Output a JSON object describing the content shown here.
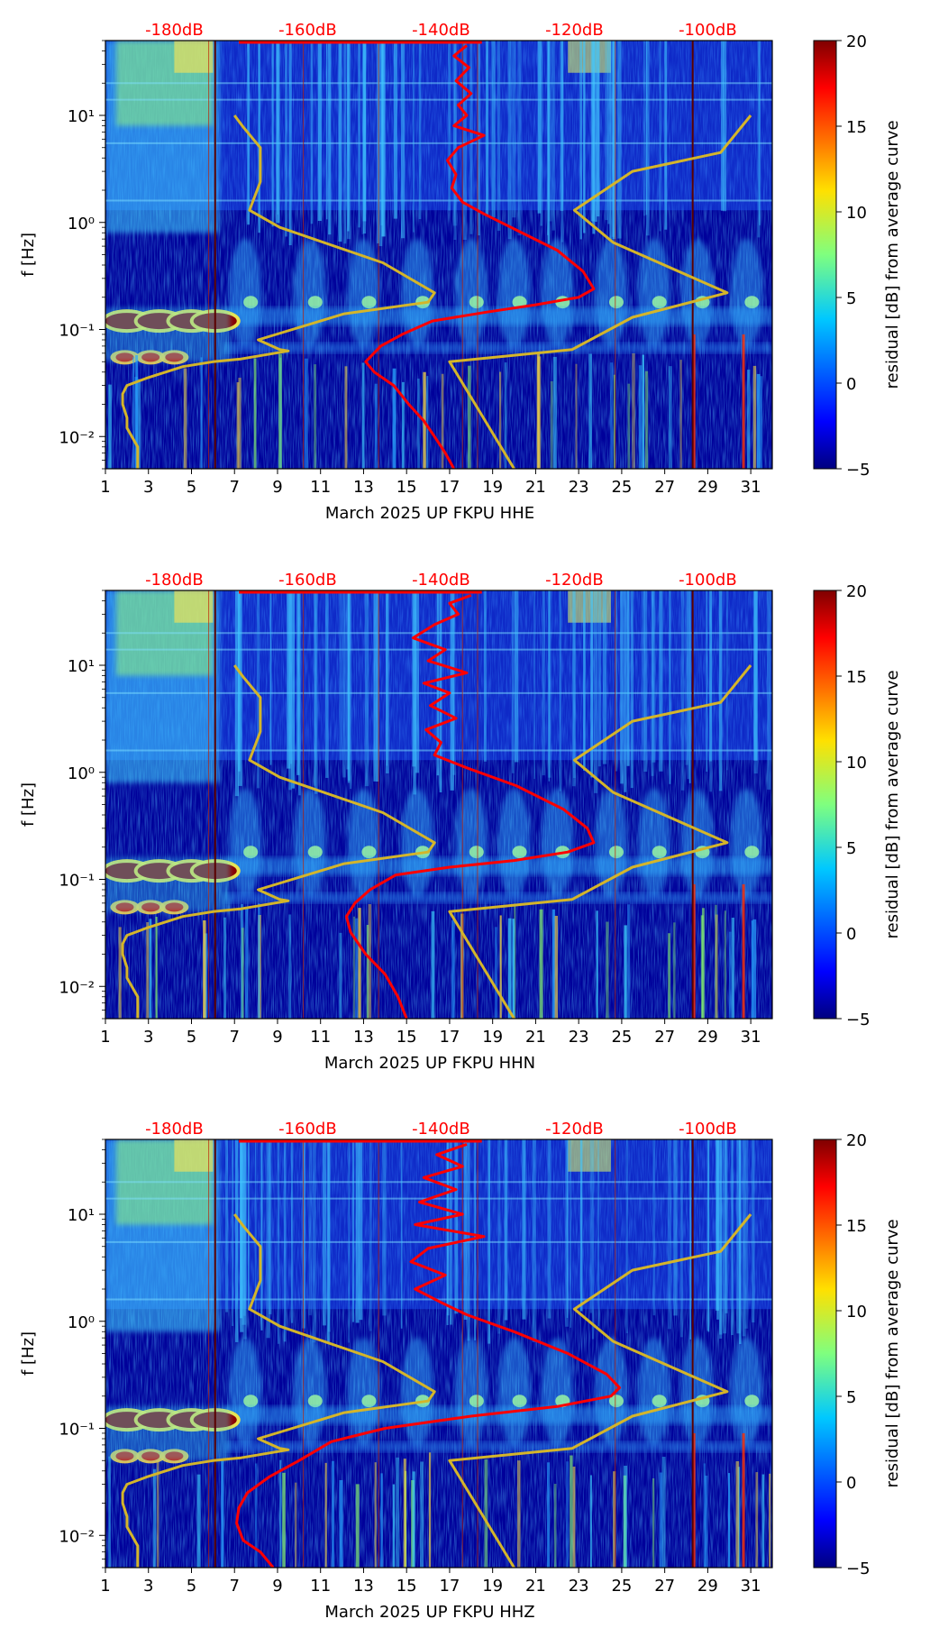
{
  "chart_data": [
    {
      "type": "heatmap",
      "xlabel": "March 2025 UP FKPU  HHE",
      "ylabel": "f [Hz]",
      "colorbar_label": "residual [dB] from average curve",
      "xlim": [
        1,
        32
      ],
      "ylim": [
        0.005,
        50
      ],
      "log_y": true,
      "x_ticks": [
        1,
        3,
        5,
        7,
        9,
        11,
        13,
        15,
        17,
        19,
        21,
        23,
        25,
        27,
        29,
        31
      ],
      "y_tick_labels": [
        "10⁻²",
        "10⁻¹",
        "10⁰",
        "10¹"
      ],
      "y_ticks": [
        0.01,
        0.1,
        1,
        10
      ],
      "top_axis_labels": [
        "-180dB",
        "-160dB",
        "-140dB",
        "-120dB",
        "-100dB"
      ],
      "top_axis_positions_day": [
        4.2,
        10.4,
        16.6,
        22.8,
        29.0
      ],
      "colorbar_ticks": [
        20,
        15,
        10,
        5,
        0,
        -5
      ],
      "colorbar_range": [
        -5,
        20
      ],
      "colormap": "jet",
      "series": [
        {
          "color": "#d4b52a",
          "x": [
            7.0,
            7.4,
            8.2,
            8.2,
            7.7,
            9.1,
            13.9,
            16.3,
            16.0,
            12.1,
            8.1,
            9.1,
            9.5,
            7.3,
            6.0,
            4.6,
            2.9,
            2.0,
            1.8,
            1.8,
            2.0,
            2.0,
            2.5,
            2.5
          ],
          "y": [
            10,
            7.8,
            5.0,
            2.4,
            1.3,
            0.9,
            0.42,
            0.22,
            0.18,
            0.14,
            0.08,
            0.065,
            0.063,
            0.053,
            0.05,
            0.045,
            0.035,
            0.03,
            0.025,
            0.02,
            0.015,
            0.012,
            0.008,
            0.005
          ]
        },
        {
          "color": "#d4b52a",
          "x": [
            31.0,
            29.6,
            25.5,
            22.8,
            24.6,
            29.9,
            25.5,
            22.7,
            17.0,
            20.0
          ],
          "y": [
            10,
            4.5,
            3.0,
            1.3,
            0.65,
            0.22,
            0.13,
            0.065,
            0.05,
            0.005
          ]
        },
        {
          "color": "#ff0000",
          "x": [
            17.8,
            17.2,
            17.9,
            17.3,
            18.0,
            17.4,
            17.8,
            17.2,
            18.6,
            17.4,
            16.9,
            17.3,
            17.1,
            17.6,
            18.6,
            20.1,
            22.0,
            23.2,
            23.7,
            23.0,
            21.0,
            18.7,
            16.2,
            14.8,
            13.8,
            13.1,
            13.5,
            14.4,
            15.1,
            15.8,
            16.3,
            16.8,
            17.2
          ],
          "y": [
            45,
            36,
            28,
            21,
            16,
            12.5,
            10,
            8,
            6.5,
            5,
            3.8,
            2.8,
            2.1,
            1.55,
            1.2,
            0.85,
            0.55,
            0.35,
            0.24,
            0.2,
            0.17,
            0.145,
            0.12,
            0.09,
            0.07,
            0.05,
            0.04,
            0.03,
            0.02,
            0.014,
            0.01,
            0.007,
            0.005
          ]
        }
      ]
    },
    {
      "type": "heatmap",
      "xlabel": "March 2025 UP FKPU  HHN",
      "ylabel": "f [Hz]",
      "colorbar_label": "residual [dB] from average curve",
      "xlim": [
        1,
        32
      ],
      "ylim": [
        0.005,
        50
      ],
      "log_y": true,
      "x_ticks": [
        1,
        3,
        5,
        7,
        9,
        11,
        13,
        15,
        17,
        19,
        21,
        23,
        25,
        27,
        29,
        31
      ],
      "y_tick_labels": [
        "10⁻²",
        "10⁻¹",
        "10⁰",
        "10¹"
      ],
      "y_ticks": [
        0.01,
        0.1,
        1,
        10
      ],
      "top_axis_labels": [
        "-180dB",
        "-160dB",
        "-140dB",
        "-120dB",
        "-100dB"
      ],
      "top_axis_positions_day": [
        4.2,
        10.4,
        16.6,
        22.8,
        29.0
      ],
      "colorbar_ticks": [
        20,
        15,
        10,
        5,
        0,
        -5
      ],
      "colorbar_range": [
        -5,
        20
      ],
      "colormap": "jet",
      "series": [
        {
          "color": "#d4b52a",
          "x": [
            7.0,
            7.4,
            8.2,
            8.2,
            7.7,
            9.1,
            13.9,
            16.3,
            16.0,
            12.1,
            8.1,
            9.1,
            9.5,
            7.3,
            6.0,
            4.6,
            2.9,
            2.0,
            1.8,
            1.8,
            2.0,
            2.0,
            2.5,
            2.5
          ],
          "y": [
            10,
            7.8,
            5.0,
            2.4,
            1.3,
            0.9,
            0.42,
            0.22,
            0.18,
            0.14,
            0.08,
            0.065,
            0.063,
            0.053,
            0.05,
            0.045,
            0.035,
            0.03,
            0.025,
            0.02,
            0.015,
            0.012,
            0.008,
            0.005
          ]
        },
        {
          "color": "#d4b52a",
          "x": [
            31.0,
            29.6,
            25.5,
            22.8,
            24.6,
            29.9,
            25.5,
            22.7,
            17.0,
            20.0
          ],
          "y": [
            10,
            4.5,
            3.0,
            1.3,
            0.65,
            0.22,
            0.13,
            0.065,
            0.05,
            0.005
          ]
        },
        {
          "color": "#ff0000",
          "x": [
            18.0,
            17.0,
            17.4,
            16.3,
            15.3,
            16.8,
            16.0,
            17.8,
            15.8,
            17.0,
            16.1,
            17.3,
            15.9,
            16.6,
            16.3,
            17.8,
            20.1,
            22.3,
            23.4,
            23.7,
            22.5,
            20.0,
            17.0,
            14.5,
            13.3,
            12.6,
            12.2,
            12.4,
            13.1,
            14.0,
            14.6,
            15.0
          ],
          "y": [
            45,
            38,
            30,
            24,
            18,
            14,
            11,
            8.5,
            6.8,
            5.5,
            4.2,
            3.2,
            2.5,
            1.9,
            1.45,
            1.1,
            0.75,
            0.45,
            0.3,
            0.22,
            0.18,
            0.15,
            0.13,
            0.11,
            0.08,
            0.06,
            0.045,
            0.032,
            0.02,
            0.013,
            0.008,
            0.005
          ]
        }
      ]
    },
    {
      "type": "heatmap",
      "xlabel": "March 2025 UP FKPU  HHZ",
      "ylabel": "f [Hz]",
      "colorbar_label": "residual [dB] from average curve",
      "xlim": [
        1,
        32
      ],
      "ylim": [
        0.005,
        50
      ],
      "log_y": true,
      "x_ticks": [
        1,
        3,
        5,
        7,
        9,
        11,
        13,
        15,
        17,
        19,
        21,
        23,
        25,
        27,
        29,
        31
      ],
      "y_tick_labels": [
        "10⁻²",
        "10⁻¹",
        "10⁰",
        "10¹"
      ],
      "y_ticks": [
        0.01,
        0.1,
        1,
        10
      ],
      "top_axis_labels": [
        "-180dB",
        "-160dB",
        "-140dB",
        "-120dB",
        "-100dB"
      ],
      "top_axis_positions_day": [
        4.2,
        10.4,
        16.6,
        22.8,
        29.0
      ],
      "colorbar_ticks": [
        20,
        15,
        10,
        5,
        0,
        -5
      ],
      "colorbar_range": [
        -5,
        20
      ],
      "colormap": "jet",
      "series": [
        {
          "color": "#d4b52a",
          "x": [
            7.0,
            7.4,
            8.2,
            8.2,
            7.7,
            9.1,
            13.9,
            16.3,
            16.0,
            12.1,
            8.1,
            9.1,
            9.5,
            7.3,
            6.0,
            4.6,
            2.9,
            2.0,
            1.8,
            1.8,
            2.0,
            2.0,
            2.5,
            2.5
          ],
          "y": [
            10,
            7.8,
            5.0,
            2.4,
            1.3,
            0.9,
            0.42,
            0.22,
            0.18,
            0.14,
            0.08,
            0.065,
            0.063,
            0.053,
            0.05,
            0.045,
            0.035,
            0.03,
            0.025,
            0.02,
            0.015,
            0.012,
            0.008,
            0.005
          ]
        },
        {
          "color": "#d4b52a",
          "x": [
            31.0,
            29.6,
            25.5,
            22.8,
            24.6,
            29.9,
            25.5,
            22.7,
            17.0,
            20.0
          ],
          "y": [
            10,
            4.5,
            3.0,
            1.3,
            0.65,
            0.22,
            0.13,
            0.065,
            0.05,
            0.005
          ]
        },
        {
          "color": "#ff0000",
          "x": [
            17.8,
            16.4,
            17.6,
            15.8,
            17.3,
            15.6,
            17.6,
            15.4,
            18.6,
            16.0,
            15.2,
            16.8,
            15.4,
            16.6,
            17.8,
            20.0,
            22.5,
            24.3,
            24.9,
            24.5,
            22.0,
            18.0,
            14.0,
            11.5,
            10.0,
            8.6,
            7.6,
            7.2,
            7.1,
            7.4,
            8.2,
            8.8
          ],
          "y": [
            45,
            36,
            28,
            22,
            17,
            13,
            10,
            8,
            6.2,
            4.8,
            3.6,
            2.7,
            2.0,
            1.5,
            1.15,
            0.8,
            0.5,
            0.32,
            0.24,
            0.2,
            0.16,
            0.13,
            0.1,
            0.075,
            0.05,
            0.035,
            0.025,
            0.018,
            0.013,
            0.009,
            0.007,
            0.005
          ]
        }
      ]
    }
  ]
}
